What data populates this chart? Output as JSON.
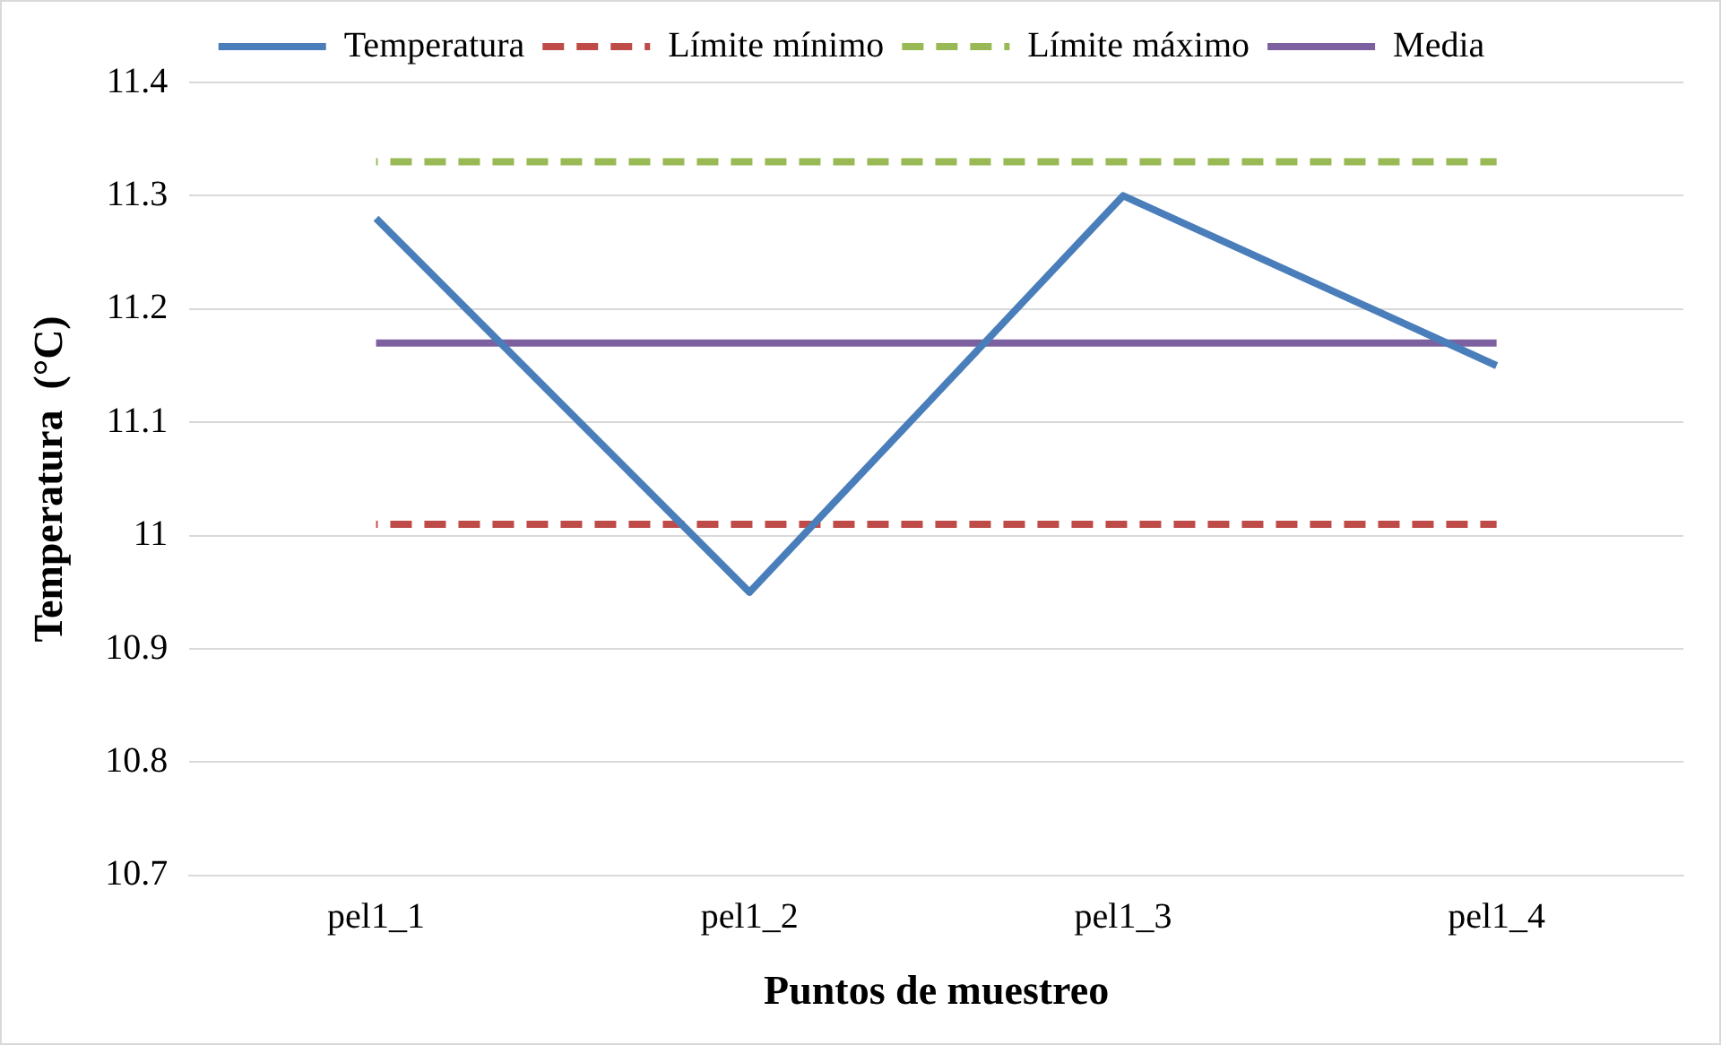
{
  "chart_data": {
    "type": "line",
    "xlabel": "Puntos de muestreo",
    "ylabel": "Temperatura  (°C)",
    "categories": [
      "pel1_1",
      "pel1_2",
      "pel1_3",
      "pel1_4"
    ],
    "series": [
      {
        "name": "Temperatura",
        "color": "#4a7ebb",
        "values": [
          11.28,
          10.95,
          11.3,
          11.15
        ]
      },
      {
        "name": "Límite mínimo",
        "color": "#be4b48",
        "line_style": "dashed",
        "values": [
          11.01,
          11.01,
          11.01,
          11.01
        ]
      },
      {
        "name": "Límite máximo",
        "color": "#98b954",
        "line_style": "dashed",
        "values": [
          11.33,
          11.33,
          11.33,
          11.33
        ]
      },
      {
        "name": "Media",
        "color": "#7d60a0",
        "values": [
          11.17,
          11.17,
          11.17,
          11.17
        ]
      }
    ],
    "ylim": [
      10.7,
      11.4
    ],
    "yticks": [
      10.7,
      10.8,
      10.9,
      11,
      11.1,
      11.2,
      11.3,
      11.4
    ],
    "grid": "y",
    "legend": "top",
    "marker": "none",
    "line_style": "solid"
  }
}
